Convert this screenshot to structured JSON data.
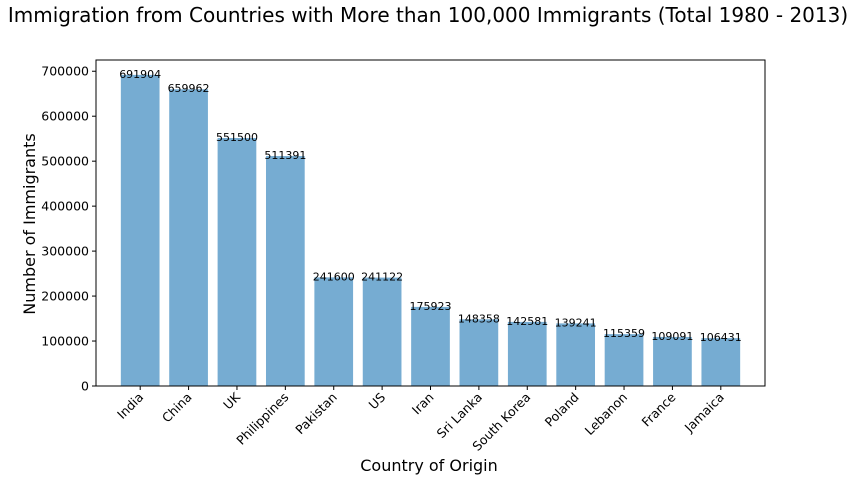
{
  "chart_data": {
    "type": "bar",
    "title": "Immigration from Countries with More than 100,000 Immigrants (Total 1980 - 2013)",
    "xlabel": "Country of Origin",
    "ylabel": "Number of Immigrants",
    "categories": [
      "India",
      "China",
      "UK",
      "Philippines",
      "Pakistan",
      "US",
      "Iran",
      "Sri Lanka",
      "South Korea",
      "Poland",
      "Lebanon",
      "France",
      "Jamaica"
    ],
    "values": [
      691904,
      659962,
      551500,
      511391,
      241600,
      241122,
      175923,
      148358,
      142581,
      139241,
      115359,
      109091,
      106431
    ],
    "data_labels": [
      "691904",
      "659962",
      "551500",
      "511391",
      "241600",
      "241122",
      "175923",
      "148358",
      "142581",
      "139241",
      "115359",
      "109091",
      "106431"
    ],
    "ylim": [
      0,
      725000
    ],
    "yticks": [
      0,
      100000,
      200000,
      300000,
      400000,
      500000,
      600000,
      700000
    ],
    "ytick_labels": [
      "0",
      "100000",
      "200000",
      "300000",
      "400000",
      "500000",
      "600000",
      "700000"
    ],
    "grid": false,
    "bar_color": "#76acd2"
  }
}
